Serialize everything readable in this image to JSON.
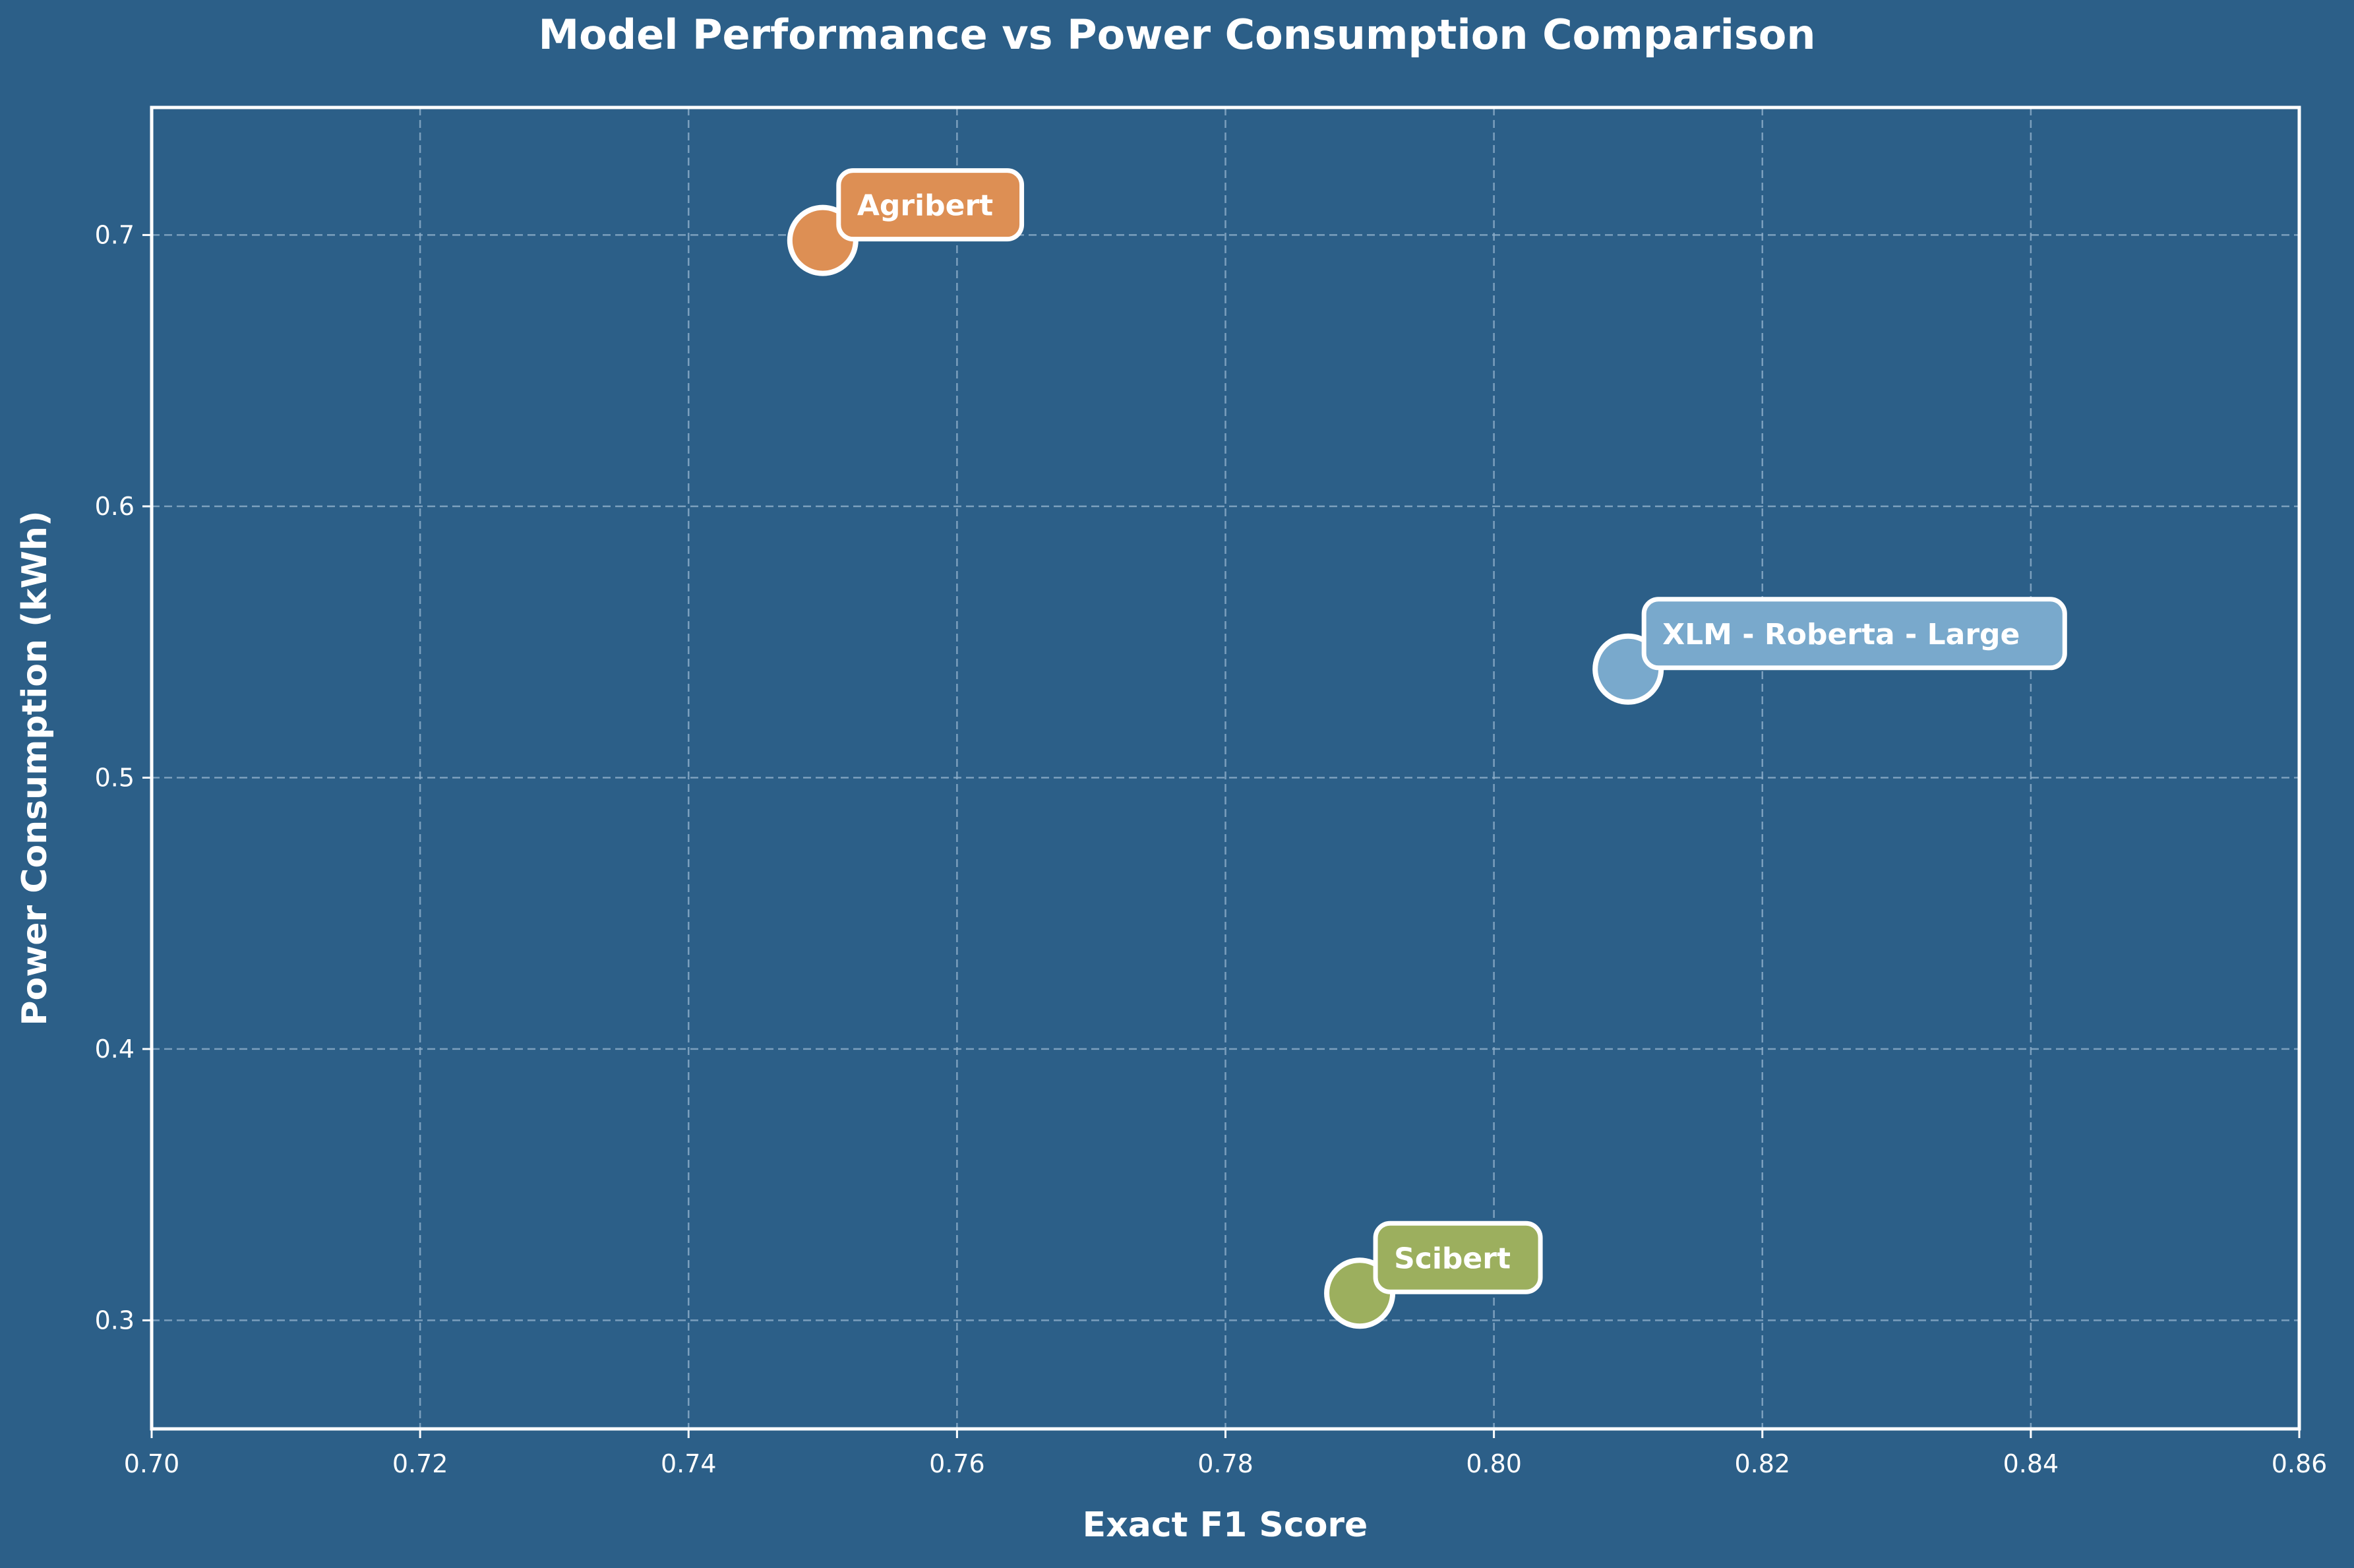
{
  "chart_data": {
    "type": "scatter",
    "title": "Model Performance vs Power Consumption Comparison",
    "xlabel": "Exact F1 Score",
    "ylabel": "Power Consumption (kWh)",
    "xlim": [
      0.7,
      0.86
    ],
    "ylim": [
      0.26,
      0.747
    ],
    "xticks": [
      "0.70",
      "0.72",
      "0.74",
      "0.76",
      "0.78",
      "0.80",
      "0.82",
      "0.84",
      "0.86"
    ],
    "xtick_values": [
      0.7,
      0.72,
      0.74,
      0.76,
      0.78,
      0.8,
      0.82,
      0.84,
      0.86
    ],
    "yticks": [
      "0.3",
      "0.4",
      "0.5",
      "0.6",
      "0.7"
    ],
    "ytick_values": [
      0.3,
      0.4,
      0.5,
      0.6,
      0.7
    ],
    "grid": true,
    "points": [
      {
        "label": "Agribert",
        "x": 0.75,
        "y": 0.698,
        "color": "#dd8f54"
      },
      {
        "label": "XLM - Roberta - Large",
        "x": 0.81,
        "y": 0.54,
        "color": "#79a9cc"
      },
      {
        "label": "Scibert",
        "x": 0.79,
        "y": 0.31,
        "color": "#9caf5e"
      }
    ]
  },
  "colors": {
    "background": "#2c5f88",
    "axes": "#ffffff",
    "grid": "#8fb0cb",
    "text": "#ffffff"
  }
}
